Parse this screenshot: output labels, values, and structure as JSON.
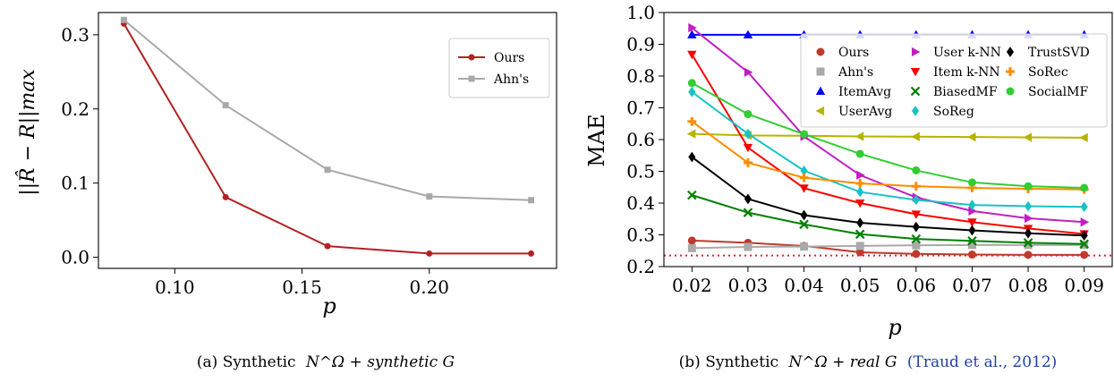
{
  "chart_data": [
    {
      "type": "line",
      "caption_prefix": "(a) Synthetic",
      "caption_math": "N^Ω + synthetic G",
      "xlabel": "p",
      "ylabel": "||R̂ − R||max",
      "xlim": [
        0.07,
        0.25
      ],
      "ylim": [
        -0.015,
        0.33
      ],
      "xticks": [
        "0.10",
        "0.15",
        "0.20"
      ],
      "yticks": [
        "0.0",
        "0.1",
        "0.2",
        "0.3"
      ],
      "legend_position": "upper right",
      "grid": false,
      "x": [
        0.08,
        0.12,
        0.16,
        0.2,
        0.24
      ],
      "series": [
        {
          "name": "Ours",
          "color": "#b22222",
          "marker": "circle",
          "values": [
            0.315,
            0.081,
            0.015,
            0.005,
            0.005
          ]
        },
        {
          "name": "Ahn's",
          "color": "#a9a9a9",
          "marker": "square",
          "values": [
            0.32,
            0.205,
            0.118,
            0.082,
            0.077
          ]
        }
      ]
    },
    {
      "type": "line",
      "caption_prefix": "(b) Synthetic",
      "caption_math": "N^Ω + real G",
      "caption_citation": "(Traud et al., 2012)",
      "xlabel": "p",
      "ylabel": "MAE",
      "xlim": [
        0.015,
        0.095
      ],
      "ylim": [
        0.2,
        1.0
      ],
      "xticks": [
        "0.02",
        "0.03",
        "0.04",
        "0.05",
        "0.06",
        "0.07",
        "0.08",
        "0.09"
      ],
      "yticks": [
        "0.2",
        "0.3",
        "0.4",
        "0.5",
        "0.6",
        "0.7",
        "0.8",
        "0.9",
        "1.0"
      ],
      "reference_line": {
        "y": 0.235,
        "style": "dotted",
        "color": "#e0202a"
      },
      "legend_position": "upper right",
      "grid": false,
      "x": [
        0.02,
        0.03,
        0.04,
        0.05,
        0.06,
        0.07,
        0.08,
        0.09
      ],
      "series": [
        {
          "name": "Ours",
          "color": "#c0392b",
          "marker": "circle",
          "values": [
            0.282,
            0.275,
            0.265,
            0.245,
            0.24,
            0.238,
            0.237,
            0.237
          ]
        },
        {
          "name": "Ahn's",
          "color": "#a9a9a9",
          "marker": "square",
          "values": [
            0.258,
            0.262,
            0.263,
            0.265,
            0.267,
            0.268,
            0.268,
            0.268
          ]
        },
        {
          "name": "ItemAvg",
          "color": "#0000ff",
          "marker": "triangle-up",
          "values": [
            0.93,
            0.93,
            0.93,
            0.93,
            0.93,
            0.93,
            0.93,
            0.93
          ]
        },
        {
          "name": "UserAvg",
          "color": "#b5b500",
          "marker": "triangle-left",
          "values": [
            0.618,
            0.613,
            0.612,
            0.61,
            0.609,
            0.608,
            0.607,
            0.606
          ]
        },
        {
          "name": "User k-NN",
          "color": "#c020c0",
          "marker": "triangle-right",
          "values": [
            0.952,
            0.812,
            0.61,
            0.488,
            0.418,
            0.375,
            0.352,
            0.34
          ]
        },
        {
          "name": "Item k-NN",
          "color": "#ff0000",
          "marker": "triangle-down",
          "values": [
            0.868,
            0.575,
            0.447,
            0.4,
            0.365,
            0.34,
            0.32,
            0.303
          ]
        },
        {
          "name": "BiasedMF",
          "color": "#008000",
          "marker": "x",
          "values": [
            0.425,
            0.37,
            0.333,
            0.302,
            0.287,
            0.281,
            0.275,
            0.271
          ]
        },
        {
          "name": "SoReg",
          "color": "#17c3c3",
          "marker": "diamond",
          "values": [
            0.75,
            0.618,
            0.502,
            0.435,
            0.41,
            0.394,
            0.39,
            0.388
          ]
        },
        {
          "name": "TrustSVD",
          "color": "#000000",
          "marker": "diamond",
          "values": [
            0.545,
            0.413,
            0.362,
            0.338,
            0.325,
            0.314,
            0.305,
            0.298
          ]
        },
        {
          "name": "SoRec",
          "color": "#ff8c00",
          "marker": "plus",
          "values": [
            0.657,
            0.527,
            0.48,
            0.462,
            0.453,
            0.448,
            0.445,
            0.443
          ]
        },
        {
          "name": "SocialMF",
          "color": "#32cd32",
          "marker": "circle",
          "values": [
            0.778,
            0.68,
            0.617,
            0.555,
            0.503,
            0.465,
            0.453,
            0.448
          ]
        }
      ]
    }
  ]
}
